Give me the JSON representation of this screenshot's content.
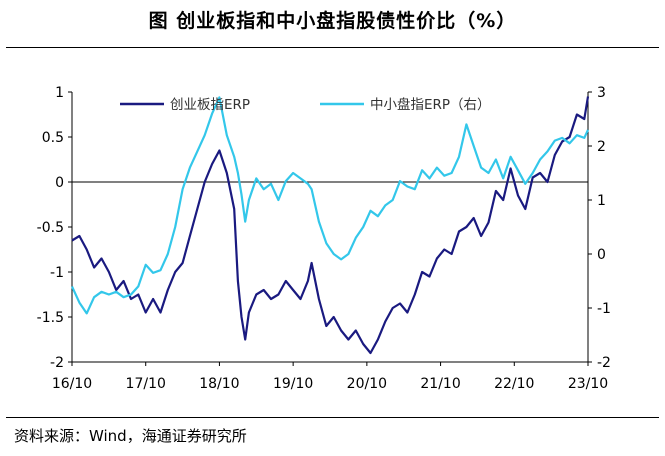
{
  "header": {
    "title": "图    创业板指和中小盘指股债性价比（%）"
  },
  "footer": {
    "source": "资料来源：Wind，海通证券研究所"
  },
  "colors": {
    "series1": "#1a1a80",
    "series2": "#33c7ea",
    "axis": "#000000"
  },
  "chart_data": {
    "type": "line",
    "title": "创业板指和中小盘指股债性价比（%）",
    "x_ticks": [
      "16/10",
      "17/10",
      "18/10",
      "19/10",
      "20/10",
      "21/10",
      "22/10",
      "23/10"
    ],
    "x_range": [
      2016.75,
      2023.75
    ],
    "y_left": {
      "range": [
        -2,
        1
      ],
      "ticks": [
        "1",
        "0.5",
        "0",
        "-0.5",
        "-1",
        "-1.5",
        "-2"
      ]
    },
    "y_right": {
      "range": [
        -2,
        3
      ],
      "ticks": [
        "3",
        "2",
        "1",
        "0",
        "-1",
        "-2"
      ]
    },
    "legend": {
      "placement": "top",
      "entries": [
        "创业板指ERP",
        "中小盘指ERP（右）"
      ]
    },
    "series": [
      {
        "name": "创业板指ERP",
        "axis": "left",
        "x": [
          2016.75,
          2016.85,
          2016.95,
          2017.05,
          2017.15,
          2017.25,
          2017.35,
          2017.45,
          2017.55,
          2017.65,
          2017.75,
          2017.85,
          2017.95,
          2018.05,
          2018.15,
          2018.25,
          2018.35,
          2018.45,
          2018.55,
          2018.65,
          2018.75,
          2018.85,
          2018.95,
          2019.0,
          2019.05,
          2019.1,
          2019.15,
          2019.25,
          2019.35,
          2019.45,
          2019.55,
          2019.65,
          2019.75,
          2019.85,
          2019.95,
          2020.0,
          2020.1,
          2020.2,
          2020.3,
          2020.4,
          2020.5,
          2020.6,
          2020.7,
          2020.8,
          2020.9,
          2021.0,
          2021.1,
          2021.2,
          2021.3,
          2021.4,
          2021.5,
          2021.6,
          2021.7,
          2021.8,
          2021.9,
          2022.0,
          2022.1,
          2022.2,
          2022.3,
          2022.4,
          2022.5,
          2022.6,
          2022.7,
          2022.8,
          2022.9,
          2023.0,
          2023.1,
          2023.2,
          2023.3,
          2023.4,
          2023.5,
          2023.6,
          2023.7,
          2023.75
        ],
        "values": [
          -0.65,
          -0.6,
          -0.75,
          -0.95,
          -0.85,
          -1.0,
          -1.2,
          -1.1,
          -1.3,
          -1.25,
          -1.45,
          -1.3,
          -1.45,
          -1.2,
          -1.0,
          -0.9,
          -0.6,
          -0.3,
          0.0,
          0.2,
          0.35,
          0.1,
          -0.3,
          -1.1,
          -1.5,
          -1.75,
          -1.45,
          -1.25,
          -1.2,
          -1.3,
          -1.25,
          -1.1,
          -1.2,
          -1.3,
          -1.1,
          -0.9,
          -1.3,
          -1.6,
          -1.5,
          -1.65,
          -1.75,
          -1.65,
          -1.8,
          -1.9,
          -1.75,
          -1.55,
          -1.4,
          -1.35,
          -1.45,
          -1.25,
          -1.0,
          -1.05,
          -0.85,
          -0.75,
          -0.8,
          -0.55,
          -0.5,
          -0.4,
          -0.6,
          -0.45,
          -0.1,
          -0.2,
          0.15,
          -0.15,
          -0.3,
          0.05,
          0.1,
          0.0,
          0.3,
          0.45,
          0.5,
          0.75,
          0.7,
          0.95
        ]
      },
      {
        "name": "中小盘指ERP（右）",
        "axis": "right",
        "x": [
          2016.75,
          2016.85,
          2016.95,
          2017.05,
          2017.15,
          2017.25,
          2017.35,
          2017.45,
          2017.55,
          2017.65,
          2017.75,
          2017.85,
          2017.95,
          2018.05,
          2018.15,
          2018.25,
          2018.35,
          2018.45,
          2018.55,
          2018.65,
          2018.75,
          2018.85,
          2018.95,
          2019.0,
          2019.05,
          2019.1,
          2019.15,
          2019.25,
          2019.35,
          2019.45,
          2019.55,
          2019.65,
          2019.75,
          2019.85,
          2019.95,
          2020.0,
          2020.1,
          2020.2,
          2020.3,
          2020.4,
          2020.5,
          2020.6,
          2020.7,
          2020.8,
          2020.9,
          2021.0,
          2021.1,
          2021.2,
          2021.3,
          2021.4,
          2021.5,
          2021.6,
          2021.7,
          2021.8,
          2021.9,
          2022.0,
          2022.1,
          2022.2,
          2022.3,
          2022.4,
          2022.5,
          2022.6,
          2022.7,
          2022.8,
          2022.9,
          2023.0,
          2023.1,
          2023.2,
          2023.3,
          2023.4,
          2023.5,
          2023.6,
          2023.7,
          2023.75
        ],
        "values": [
          -0.6,
          -0.9,
          -1.1,
          -0.8,
          -0.7,
          -0.75,
          -0.7,
          -0.8,
          -0.75,
          -0.6,
          -0.2,
          -0.35,
          -0.3,
          0.0,
          0.5,
          1.2,
          1.6,
          1.9,
          2.2,
          2.6,
          2.9,
          2.2,
          1.8,
          1.5,
          1.1,
          0.6,
          1.0,
          1.4,
          1.2,
          1.3,
          1.0,
          1.35,
          1.5,
          1.4,
          1.3,
          1.2,
          0.6,
          0.2,
          0.0,
          -0.1,
          0.0,
          0.3,
          0.5,
          0.8,
          0.7,
          0.9,
          1.0,
          1.35,
          1.25,
          1.2,
          1.55,
          1.4,
          1.6,
          1.45,
          1.5,
          1.8,
          2.4,
          2.0,
          1.6,
          1.5,
          1.75,
          1.4,
          1.8,
          1.55,
          1.3,
          1.5,
          1.75,
          1.9,
          2.1,
          2.15,
          2.05,
          2.2,
          2.15,
          2.3
        ]
      }
    ]
  }
}
